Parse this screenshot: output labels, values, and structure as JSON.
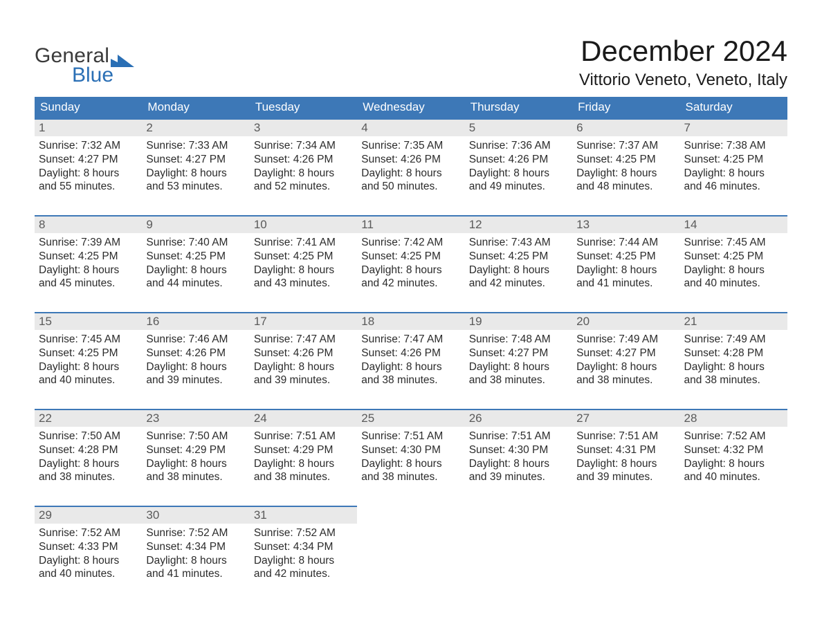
{
  "logo": {
    "text_top": "General",
    "text_bottom": "Blue",
    "accent_color": "#2a6fb5",
    "text_color": "#3a3a3a"
  },
  "title": "December 2024",
  "location": "Vittorio Veneto, Veneto, Italy",
  "day_headers": [
    "Sunday",
    "Monday",
    "Tuesday",
    "Wednesday",
    "Thursday",
    "Friday",
    "Saturday"
  ],
  "colors": {
    "header_bg": "#3d78b7",
    "header_fg": "#ffffff",
    "daynum_bg": "#e9e9e9",
    "daynum_fg": "#5a5a5a",
    "cell_border": "#3d78b7",
    "body_text": "#2b2b2b"
  },
  "weeks": [
    [
      {
        "day": "1",
        "sunrise": "Sunrise: 7:32 AM",
        "sunset": "Sunset: 4:27 PM",
        "d1": "Daylight: 8 hours",
        "d2": "and 55 minutes."
      },
      {
        "day": "2",
        "sunrise": "Sunrise: 7:33 AM",
        "sunset": "Sunset: 4:27 PM",
        "d1": "Daylight: 8 hours",
        "d2": "and 53 minutes."
      },
      {
        "day": "3",
        "sunrise": "Sunrise: 7:34 AM",
        "sunset": "Sunset: 4:26 PM",
        "d1": "Daylight: 8 hours",
        "d2": "and 52 minutes."
      },
      {
        "day": "4",
        "sunrise": "Sunrise: 7:35 AM",
        "sunset": "Sunset: 4:26 PM",
        "d1": "Daylight: 8 hours",
        "d2": "and 50 minutes."
      },
      {
        "day": "5",
        "sunrise": "Sunrise: 7:36 AM",
        "sunset": "Sunset: 4:26 PM",
        "d1": "Daylight: 8 hours",
        "d2": "and 49 minutes."
      },
      {
        "day": "6",
        "sunrise": "Sunrise: 7:37 AM",
        "sunset": "Sunset: 4:25 PM",
        "d1": "Daylight: 8 hours",
        "d2": "and 48 minutes."
      },
      {
        "day": "7",
        "sunrise": "Sunrise: 7:38 AM",
        "sunset": "Sunset: 4:25 PM",
        "d1": "Daylight: 8 hours",
        "d2": "and 46 minutes."
      }
    ],
    [
      {
        "day": "8",
        "sunrise": "Sunrise: 7:39 AM",
        "sunset": "Sunset: 4:25 PM",
        "d1": "Daylight: 8 hours",
        "d2": "and 45 minutes."
      },
      {
        "day": "9",
        "sunrise": "Sunrise: 7:40 AM",
        "sunset": "Sunset: 4:25 PM",
        "d1": "Daylight: 8 hours",
        "d2": "and 44 minutes."
      },
      {
        "day": "10",
        "sunrise": "Sunrise: 7:41 AM",
        "sunset": "Sunset: 4:25 PM",
        "d1": "Daylight: 8 hours",
        "d2": "and 43 minutes."
      },
      {
        "day": "11",
        "sunrise": "Sunrise: 7:42 AM",
        "sunset": "Sunset: 4:25 PM",
        "d1": "Daylight: 8 hours",
        "d2": "and 42 minutes."
      },
      {
        "day": "12",
        "sunrise": "Sunrise: 7:43 AM",
        "sunset": "Sunset: 4:25 PM",
        "d1": "Daylight: 8 hours",
        "d2": "and 42 minutes."
      },
      {
        "day": "13",
        "sunrise": "Sunrise: 7:44 AM",
        "sunset": "Sunset: 4:25 PM",
        "d1": "Daylight: 8 hours",
        "d2": "and 41 minutes."
      },
      {
        "day": "14",
        "sunrise": "Sunrise: 7:45 AM",
        "sunset": "Sunset: 4:25 PM",
        "d1": "Daylight: 8 hours",
        "d2": "and 40 minutes."
      }
    ],
    [
      {
        "day": "15",
        "sunrise": "Sunrise: 7:45 AM",
        "sunset": "Sunset: 4:25 PM",
        "d1": "Daylight: 8 hours",
        "d2": "and 40 minutes."
      },
      {
        "day": "16",
        "sunrise": "Sunrise: 7:46 AM",
        "sunset": "Sunset: 4:26 PM",
        "d1": "Daylight: 8 hours",
        "d2": "and 39 minutes."
      },
      {
        "day": "17",
        "sunrise": "Sunrise: 7:47 AM",
        "sunset": "Sunset: 4:26 PM",
        "d1": "Daylight: 8 hours",
        "d2": "and 39 minutes."
      },
      {
        "day": "18",
        "sunrise": "Sunrise: 7:47 AM",
        "sunset": "Sunset: 4:26 PM",
        "d1": "Daylight: 8 hours",
        "d2": "and 38 minutes."
      },
      {
        "day": "19",
        "sunrise": "Sunrise: 7:48 AM",
        "sunset": "Sunset: 4:27 PM",
        "d1": "Daylight: 8 hours",
        "d2": "and 38 minutes."
      },
      {
        "day": "20",
        "sunrise": "Sunrise: 7:49 AM",
        "sunset": "Sunset: 4:27 PM",
        "d1": "Daylight: 8 hours",
        "d2": "and 38 minutes."
      },
      {
        "day": "21",
        "sunrise": "Sunrise: 7:49 AM",
        "sunset": "Sunset: 4:28 PM",
        "d1": "Daylight: 8 hours",
        "d2": "and 38 minutes."
      }
    ],
    [
      {
        "day": "22",
        "sunrise": "Sunrise: 7:50 AM",
        "sunset": "Sunset: 4:28 PM",
        "d1": "Daylight: 8 hours",
        "d2": "and 38 minutes."
      },
      {
        "day": "23",
        "sunrise": "Sunrise: 7:50 AM",
        "sunset": "Sunset: 4:29 PM",
        "d1": "Daylight: 8 hours",
        "d2": "and 38 minutes."
      },
      {
        "day": "24",
        "sunrise": "Sunrise: 7:51 AM",
        "sunset": "Sunset: 4:29 PM",
        "d1": "Daylight: 8 hours",
        "d2": "and 38 minutes."
      },
      {
        "day": "25",
        "sunrise": "Sunrise: 7:51 AM",
        "sunset": "Sunset: 4:30 PM",
        "d1": "Daylight: 8 hours",
        "d2": "and 38 minutes."
      },
      {
        "day": "26",
        "sunrise": "Sunrise: 7:51 AM",
        "sunset": "Sunset: 4:30 PM",
        "d1": "Daylight: 8 hours",
        "d2": "and 39 minutes."
      },
      {
        "day": "27",
        "sunrise": "Sunrise: 7:51 AM",
        "sunset": "Sunset: 4:31 PM",
        "d1": "Daylight: 8 hours",
        "d2": "and 39 minutes."
      },
      {
        "day": "28",
        "sunrise": "Sunrise: 7:52 AM",
        "sunset": "Sunset: 4:32 PM",
        "d1": "Daylight: 8 hours",
        "d2": "and 40 minutes."
      }
    ],
    [
      {
        "day": "29",
        "sunrise": "Sunrise: 7:52 AM",
        "sunset": "Sunset: 4:33 PM",
        "d1": "Daylight: 8 hours",
        "d2": "and 40 minutes."
      },
      {
        "day": "30",
        "sunrise": "Sunrise: 7:52 AM",
        "sunset": "Sunset: 4:34 PM",
        "d1": "Daylight: 8 hours",
        "d2": "and 41 minutes."
      },
      {
        "day": "31",
        "sunrise": "Sunrise: 7:52 AM",
        "sunset": "Sunset: 4:34 PM",
        "d1": "Daylight: 8 hours",
        "d2": "and 42 minutes."
      },
      null,
      null,
      null,
      null
    ]
  ]
}
